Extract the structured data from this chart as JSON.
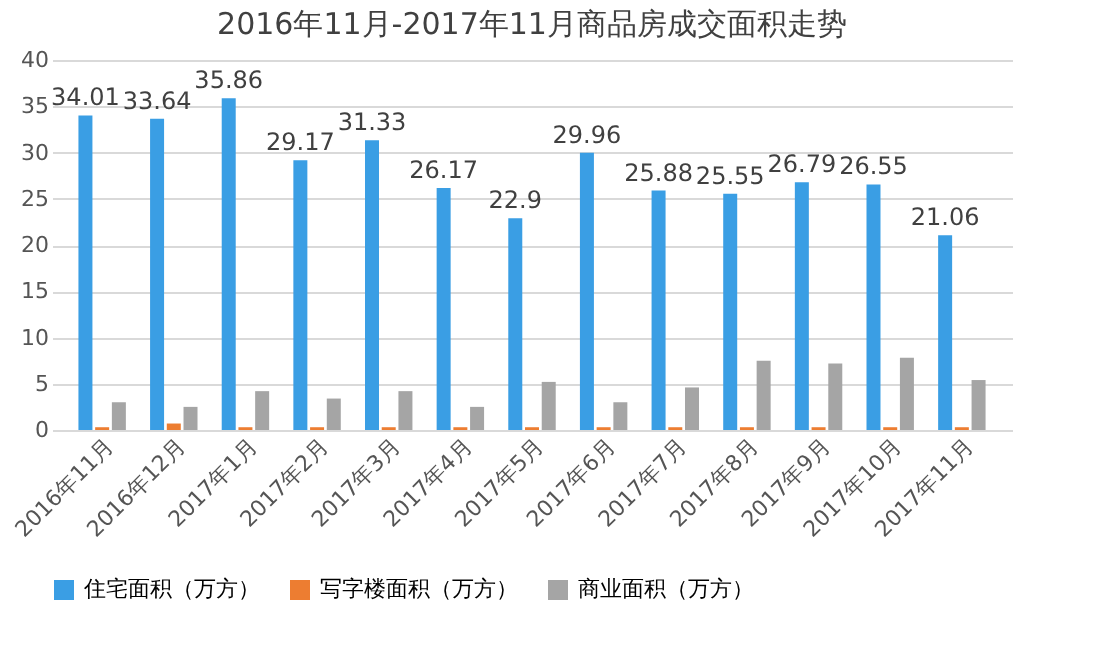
{
  "chart_data": {
    "type": "bar",
    "title": "2016年11月-2017年11月商品房成交面积走势",
    "categories": [
      "2016年11月",
      "2016年12月",
      "2017年1月",
      "2017年2月",
      "2017年3月",
      "2017年4月",
      "2017年5月",
      "2017年6月",
      "2017年7月",
      "2017年8月",
      "2017年9月",
      "2017年10月",
      "2017年11月"
    ],
    "series": [
      {
        "name": "住宅面积（万方）",
        "color": "#3a9ee4",
        "values": [
          34.01,
          33.64,
          35.86,
          29.17,
          31.33,
          26.17,
          22.9,
          29.96,
          25.88,
          25.55,
          26.79,
          26.55,
          21.06
        ],
        "value_labels": [
          "34.01",
          "33.64",
          "35.86",
          "29.17",
          "31.33",
          "26.17",
          "22.9",
          "29.96",
          "25.88",
          "25.55",
          "26.79",
          "26.55",
          "21.06"
        ]
      },
      {
        "name": "写字楼面积（万方）",
        "color": "#ed7d31",
        "values": [
          0.3,
          0.7,
          0.3,
          0.3,
          0.3,
          0.3,
          0.3,
          0.3,
          0.3,
          0.3,
          0.3,
          0.3,
          0.3
        ]
      },
      {
        "name": "商业面积（万方）",
        "color": "#a5a5a5",
        "values": [
          3.0,
          2.5,
          4.2,
          3.4,
          4.2,
          2.5,
          5.2,
          3.0,
          4.6,
          7.5,
          7.2,
          7.8,
          5.4
        ]
      }
    ],
    "ylim": [
      0,
      40
    ],
    "yticks": [
      0,
      5,
      10,
      15,
      20,
      25,
      30,
      35,
      40
    ],
    "grid": "y",
    "legend": "bottom"
  }
}
